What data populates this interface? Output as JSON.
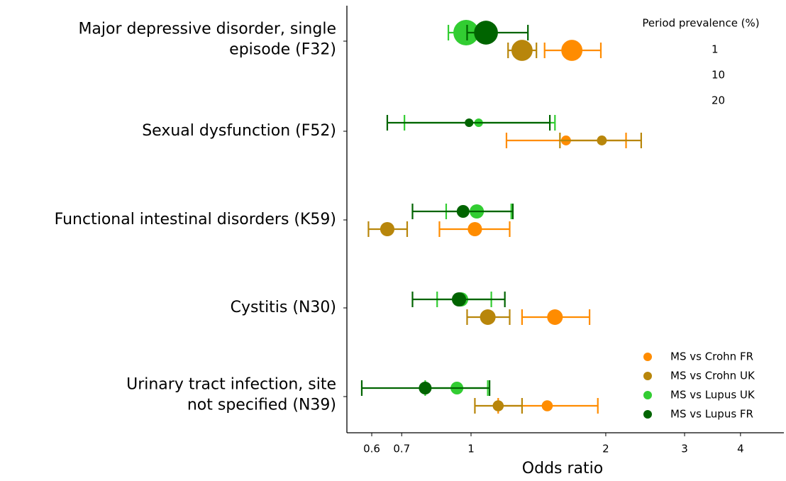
{
  "chart_data": {
    "type": "forest",
    "xlabel": "Odds ratio",
    "xscale": "log",
    "xlim": [
      0.528,
      5.0
    ],
    "xticks": [
      0.6,
      0.7,
      1,
      2,
      3,
      4
    ],
    "categories": [
      [
        "Major depressive disorder, single",
        "episode (F32)"
      ],
      [
        "Sexual dysfunction (F52)"
      ],
      [
        "Functional intestinal disorders (K59)"
      ],
      [
        "Cystitis (N30)"
      ],
      [
        "Urinary tract infection, site",
        "not specified (N39)"
      ]
    ],
    "size_legend": {
      "title": "Period prevalence (%)",
      "sizes": [
        1,
        10,
        20
      ]
    },
    "series": [
      {
        "name": "MS vs Crohn FR",
        "color": "#ff8c00",
        "values": [
          1.68,
          1.63,
          1.02,
          1.54,
          1.48
        ],
        "lower": [
          1.46,
          1.2,
          0.85,
          1.3,
          1.15
        ],
        "upper": [
          1.95,
          2.22,
          1.22,
          1.84,
          1.92
        ],
        "prevalence": [
          11,
          2.4,
          5,
          6,
          3
        ]
      },
      {
        "name": "MS vs Crohn UK",
        "color": "#b8860b",
        "values": [
          1.3,
          1.96,
          0.65,
          1.09,
          1.15
        ],
        "lower": [
          1.21,
          1.58,
          0.59,
          0.98,
          1.02
        ],
        "upper": [
          1.4,
          2.4,
          0.72,
          1.22,
          1.3
        ],
        "prevalence": [
          11,
          2.4,
          5,
          6,
          3
        ]
      },
      {
        "name": "MS vs Lupus UK",
        "color": "#32cd32",
        "values": [
          0.975,
          1.04,
          1.03,
          0.95,
          0.93
        ],
        "lower": [
          0.89,
          0.71,
          0.88,
          0.84,
          0.79
        ],
        "upper": [
          1.08,
          1.54,
          1.23,
          1.11,
          1.09
        ],
        "prevalence": [
          16,
          1.8,
          5,
          5,
          4
        ]
      },
      {
        "name": "MS vs Lupus FR",
        "color": "#006400",
        "values": [
          1.08,
          0.99,
          0.96,
          0.94,
          0.79
        ],
        "lower": [
          0.98,
          0.65,
          0.74,
          0.74,
          0.57
        ],
        "upper": [
          1.34,
          1.5,
          1.24,
          1.19,
          1.1
        ],
        "prevalence": [
          14,
          1.8,
          4,
          5,
          4
        ]
      }
    ]
  }
}
